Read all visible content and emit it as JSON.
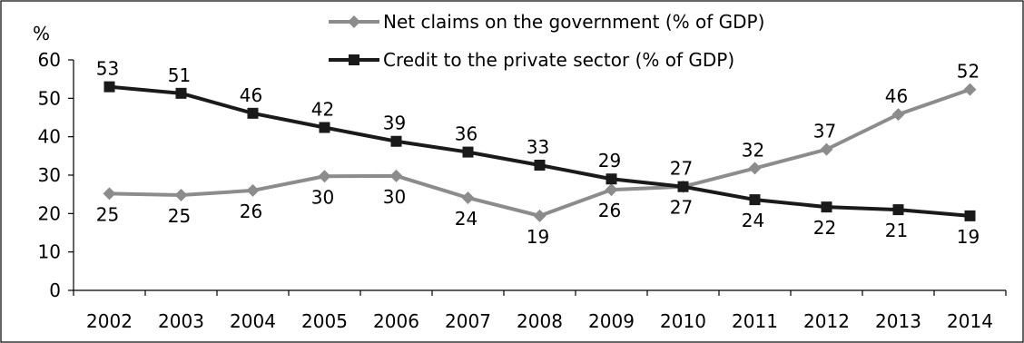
{
  "chart_data": {
    "type": "line",
    "title": "",
    "xlabel": "",
    "ylabel": "%",
    "ylim": [
      0,
      60
    ],
    "yticks": [
      "0",
      "10",
      "20",
      "30",
      "40",
      "50",
      "60"
    ],
    "grid": false,
    "legend_position": "top-center",
    "categories": [
      "2002",
      "2003",
      "2004",
      "2005",
      "2006",
      "2007",
      "2008",
      "2009",
      "2010",
      "2011",
      "2012",
      "2013",
      "2014"
    ],
    "series": [
      {
        "name": "Net claims on the government (% of GDP)",
        "color": "#8c8c8c",
        "marker": "diamond",
        "values": [
          25.2,
          24.8,
          26.0,
          29.7,
          29.8,
          24.1,
          19.4,
          26.2,
          27.0,
          31.8,
          36.7,
          45.8,
          52.3
        ],
        "labels": [
          "25",
          "25",
          "26",
          "30",
          "30",
          "24",
          "19",
          "26",
          "27",
          "32",
          "37",
          "46",
          "52"
        ],
        "label_pos": [
          "below",
          "below",
          "below",
          "below",
          "below",
          "below",
          "below",
          "below",
          "below",
          "above",
          "above",
          "above",
          "above"
        ]
      },
      {
        "name": "Credit to the private sector (% of GDP)",
        "color": "#1a1a1a",
        "marker": "square",
        "values": [
          53.0,
          51.3,
          46.1,
          42.4,
          38.8,
          36.0,
          32.6,
          29.0,
          27.0,
          23.6,
          21.7,
          21.0,
          19.4
        ],
        "labels": [
          "53",
          "51",
          "46",
          "42",
          "39",
          "36",
          "33",
          "29",
          "27",
          "24",
          "22",
          "21",
          "19"
        ],
        "label_pos": [
          "above",
          "above",
          "above",
          "above",
          "above",
          "above",
          "above",
          "above",
          "above",
          "below",
          "below",
          "below",
          "below"
        ]
      }
    ]
  }
}
